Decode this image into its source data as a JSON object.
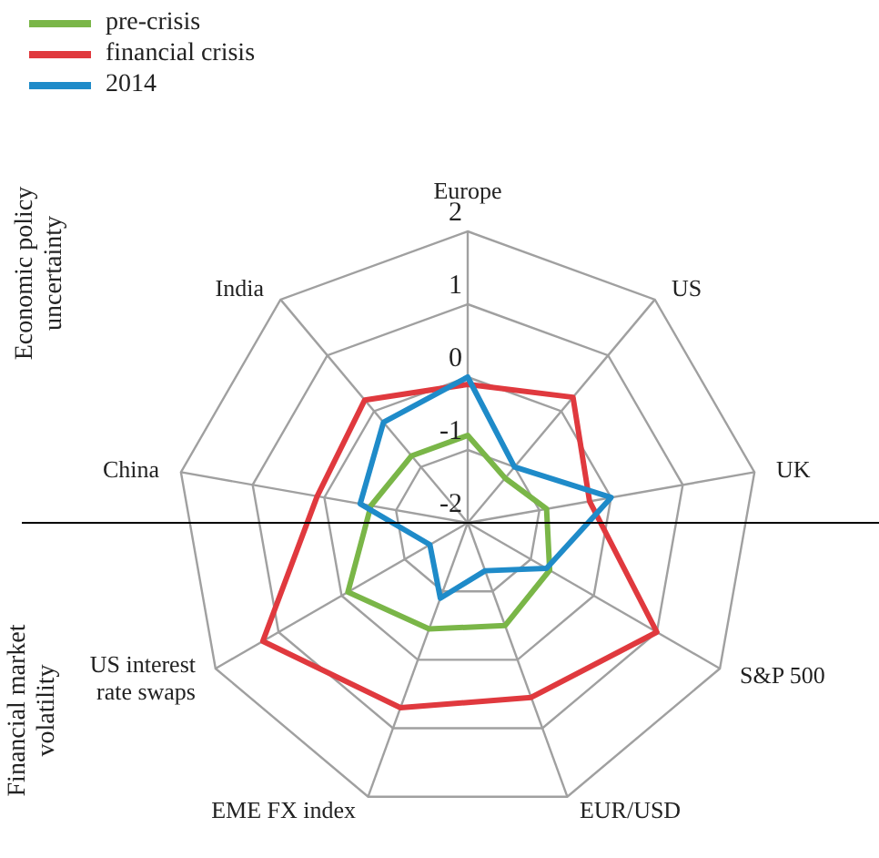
{
  "chart_data": {
    "type": "radar",
    "categories": [
      "Europe",
      "US",
      "UK",
      "S&P 500",
      "EUR/USD",
      "EME FX index",
      "US interest rate swaps",
      "China",
      "India"
    ],
    "series": [
      {
        "name": "pre-crisis",
        "color": "#7ab648",
        "values": [
          -0.8,
          -1.2,
          -0.9,
          -0.7,
          -0.5,
          -0.45,
          -0.1,
          -0.65,
          -0.8
        ]
      },
      {
        "name": "financial crisis",
        "color": "#e0393e",
        "values": [
          -0.1,
          0.25,
          -0.3,
          1.0,
          0.55,
          0.7,
          1.25,
          0.1,
          0.2
        ]
      },
      {
        "name": "2014",
        "color": "#1f8bc9",
        "values": [
          0,
          -1,
          0,
          -0.75,
          -1.3,
          -0.9,
          -1.4,
          -0.5,
          -0.2
        ]
      }
    ],
    "ylim": [
      -2,
      2
    ],
    "yticks": [
      -2,
      -1,
      0,
      1,
      2
    ],
    "legend": "top left",
    "annotations": [
      "Economic policy uncertainty",
      "Financial market volatility"
    ]
  }
}
